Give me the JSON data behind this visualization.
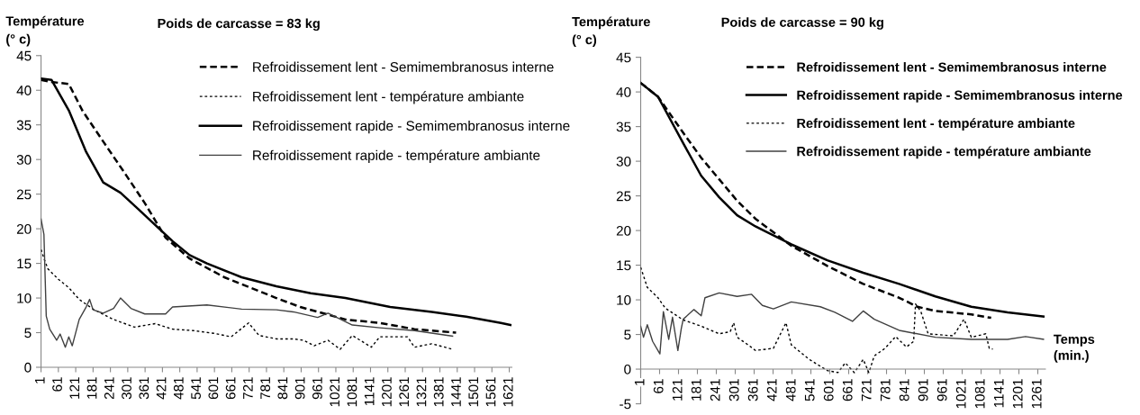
{
  "chart_data": [
    {
      "type": "line",
      "title": "Poids de carcasse = 83 kg",
      "ylabel": "Température\n(° c)",
      "xlim": [
        1,
        1630
      ],
      "ylim": [
        0,
        45
      ],
      "xticks": [
        1,
        61,
        121,
        181,
        241,
        301,
        361,
        421,
        481,
        541,
        601,
        661,
        721,
        781,
        841,
        901,
        961,
        1021,
        1081,
        1141,
        1201,
        1261,
        1321,
        1381,
        1441,
        1501,
        1561,
        1621
      ],
      "yticks": [
        0,
        5,
        10,
        15,
        20,
        25,
        30,
        35,
        40,
        45
      ],
      "grid": false,
      "legend": "top right",
      "series": [
        {
          "name": "Refroidissement lent - Semimembranosus interne",
          "color": "#000000",
          "line_style": "dashed",
          "x": [
            1,
            37,
            97,
            145,
            216,
            288,
            360,
            432,
            515,
            635,
            815,
            898,
            1054,
            1173,
            1293,
            1437
          ],
          "values": [
            41.5,
            41.2,
            40.9,
            37,
            32.6,
            28.2,
            23.7,
            18.7,
            15.7,
            13,
            10,
            8.7,
            6.9,
            6.4,
            5.5,
            5.0
          ]
        },
        {
          "name": "Refroidissement lent - température ambiante",
          "color": "#000000",
          "line_style": "dotted",
          "x": [
            1,
            13,
            25,
            61,
            97,
            133,
            181,
            252,
            324,
            396,
            456,
            528,
            599,
            659,
            719,
            755,
            815,
            874,
            910,
            946,
            994,
            1036,
            1078,
            1144,
            1173,
            1269,
            1293,
            1353,
            1425
          ],
          "values": [
            17,
            15.5,
            14.2,
            12.7,
            11.5,
            9.8,
            8.4,
            6.9,
            5.8,
            6.3,
            5.5,
            5.3,
            4.9,
            4.4,
            6.4,
            4.6,
            4.1,
            4.1,
            3.9,
            3.1,
            3.9,
            2.6,
            4.6,
            2.9,
            4.4,
            4.4,
            2.9,
            3.4,
            2.6
          ]
        },
        {
          "name": "Refroidissement rapide - Semimembranosus interne",
          "color": "#000000",
          "line_style": "solid",
          "x": [
            1,
            37,
            97,
            157,
            216,
            276,
            336,
            456,
            515,
            575,
            695,
            815,
            934,
            1054,
            1209,
            1353,
            1472,
            1592,
            1625
          ],
          "values": [
            41.7,
            41.5,
            37.1,
            31.1,
            26.7,
            25.2,
            22.9,
            18.2,
            16.2,
            15,
            13,
            11.7,
            10.7,
            10,
            8.7,
            8.0,
            7.3,
            6.4,
            6.1
          ]
        },
        {
          "name": "Refroidissement rapide - température ambiante",
          "color": "#404040",
          "line_style": "solid",
          "x": [
            1,
            11,
            19,
            31,
            55,
            67,
            85,
            97,
            109,
            133,
            157,
            169,
            181,
            216,
            252,
            276,
            312,
            360,
            432,
            456,
            575,
            695,
            815,
            874,
            958,
            994,
            1078,
            1173,
            1293,
            1425
          ],
          "values": [
            21.4,
            19.2,
            7.4,
            5.5,
            3.9,
            4.8,
            2.9,
            4.4,
            3.1,
            6.9,
            8.7,
            9.8,
            8.3,
            7.8,
            8.5,
            10,
            8.5,
            7.7,
            7.7,
            8.7,
            9.0,
            8.4,
            8.3,
            8.0,
            7.2,
            7.8,
            6.1,
            5.7,
            5.3,
            4.5
          ]
        }
      ]
    },
    {
      "type": "line",
      "title": "Poids de carcasse = 90 kg",
      "ylabel": "Température\n(° c)",
      "xlabel": "Temps\n(min.)",
      "xlim": [
        1,
        1285
      ],
      "ylim": [
        -5,
        45
      ],
      "xticks": [
        1,
        61,
        121,
        181,
        241,
        301,
        361,
        421,
        481,
        541,
        601,
        661,
        721,
        781,
        841,
        901,
        961,
        1021,
        1081,
        1141,
        1201,
        1261
      ],
      "yticks": [
        -5,
        0,
        5,
        10,
        15,
        20,
        25,
        30,
        35,
        40,
        45
      ],
      "grid": false,
      "legend": "top right",
      "series": [
        {
          "name": "Refroidissement lent - Semimembranosus interne",
          "color": "#000000",
          "line_style": "dashed",
          "x": [
            1,
            56,
            136,
            193,
            250,
            307,
            365,
            479,
            593,
            707,
            821,
            879,
            936,
            1050,
            1113
          ],
          "values": [
            41.3,
            39.3,
            34.1,
            30.5,
            27.4,
            24.3,
            21.7,
            17.8,
            14.9,
            12.3,
            10.3,
            9.0,
            8.4,
            7.9,
            7.4
          ]
        },
        {
          "name": "Refroidissement rapide - Semimembranosus interne",
          "color": "#000000",
          "line_style": "solid",
          "x": [
            1,
            56,
            136,
            193,
            250,
            307,
            365,
            479,
            593,
            707,
            821,
            936,
            1050,
            1165,
            1279
          ],
          "values": [
            41.3,
            39.3,
            32.6,
            27.9,
            24.8,
            22.2,
            20.6,
            18.0,
            15.7,
            13.9,
            12.3,
            10.5,
            9.0,
            8.2,
            7.6
          ]
        },
        {
          "name": "Refroidissement lent - température ambiante",
          "color": "#000000",
          "line_style": "dotted",
          "x": [
            1,
            22,
            56,
            79,
            136,
            193,
            250,
            285,
            296,
            307,
            342,
            365,
            422,
            462,
            479,
            536,
            593,
            627,
            650,
            679,
            707,
            725,
            742,
            776,
            810,
            844,
            867,
            873,
            890,
            913,
            993,
            1027,
            1050,
            1096,
            1107,
            1118
          ],
          "values": [
            14.7,
            11.8,
            10.3,
            8.8,
            7.1,
            6.2,
            5.1,
            5.4,
            6.7,
            4.6,
            3.5,
            2.7,
            3.0,
            6.7,
            3.5,
            1.4,
            -0.2,
            -0.5,
            0.9,
            -0.5,
            1.4,
            -0.5,
            1.9,
            3.0,
            4.7,
            3.2,
            4.0,
            9.4,
            8.3,
            5.1,
            4.8,
            7.2,
            4.6,
            5.1,
            3.0,
            2.9
          ]
        },
        {
          "name": "Refroidissement rapide - température ambiante",
          "color": "#404040",
          "line_style": "solid",
          "x": [
            1,
            10,
            22,
            39,
            62,
            73,
            90,
            102,
            119,
            130,
            136,
            170,
            193,
            205,
            250,
            307,
            353,
            387,
            422,
            479,
            571,
            617,
            673,
            707,
            742,
            821,
            936,
            1050,
            1165,
            1222,
            1279
          ],
          "values": [
            6.2,
            4.6,
            6.4,
            4.0,
            2.2,
            8.3,
            4.3,
            7.5,
            2.7,
            5.9,
            7.2,
            8.6,
            7.7,
            10.3,
            11.0,
            10.5,
            10.8,
            9.2,
            8.7,
            9.7,
            9.0,
            8.2,
            6.9,
            8.4,
            7.2,
            5.6,
            4.6,
            4.3,
            4.3,
            4.7,
            4.3
          ]
        }
      ]
    }
  ]
}
